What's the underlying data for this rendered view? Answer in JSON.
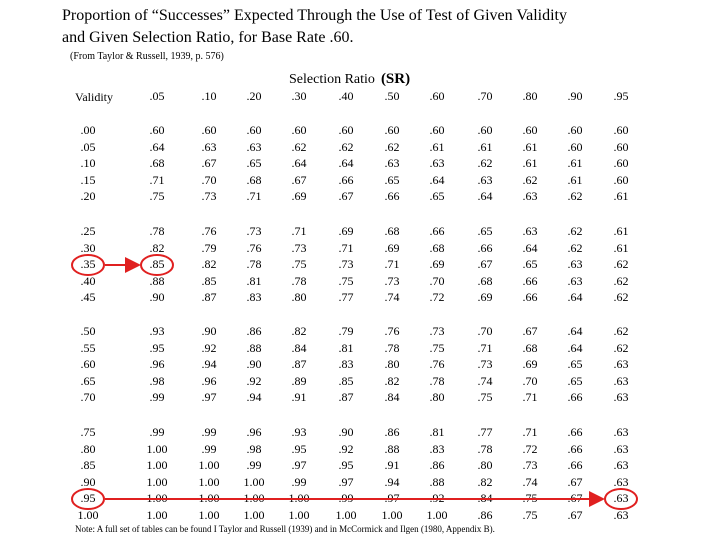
{
  "title_line1": "Proportion of “Successes” Expected Through the Use of Test of Given Validity",
  "title_line2": "and Given Selection Ratio, for Base Rate .60.",
  "source": "(From Taylor & Russell, 1939, p. 576)",
  "selection_ratio_label": "Selection Ratio",
  "selection_ratio_abbr": "(SR)",
  "validity_label": "Validity",
  "note": "Note: A full set of tables can be found I Taylor and Russell (1939) and in McCormick and Ilgen (1980, Appendix B).",
  "colors": {
    "annotation": "#e02020"
  },
  "columns": [
    ".05",
    ".10",
    ".20",
    ".30",
    ".40",
    ".50",
    ".60",
    ".70",
    ".80",
    ".90",
    ".95"
  ],
  "row_groups": [
    {
      "validity": [
        ".00",
        ".05",
        ".10",
        ".15",
        ".20"
      ],
      "rows": [
        [
          ".60",
          ".60",
          ".60",
          ".60",
          ".60",
          ".60",
          ".60",
          ".60",
          ".60",
          ".60",
          ".60"
        ],
        [
          ".64",
          ".63",
          ".63",
          ".62",
          ".62",
          ".62",
          ".61",
          ".61",
          ".61",
          ".60",
          ".60"
        ],
        [
          ".68",
          ".67",
          ".65",
          ".64",
          ".64",
          ".63",
          ".63",
          ".62",
          ".61",
          ".61",
          ".60"
        ],
        [
          ".71",
          ".70",
          ".68",
          ".67",
          ".66",
          ".65",
          ".64",
          ".63",
          ".62",
          ".61",
          ".60"
        ],
        [
          ".75",
          ".73",
          ".71",
          ".69",
          ".67",
          ".66",
          ".65",
          ".64",
          ".63",
          ".62",
          ".61"
        ]
      ]
    },
    {
      "validity": [
        ".25",
        ".30",
        ".35",
        ".40",
        ".45"
      ],
      "rows": [
        [
          ".78",
          ".76",
          ".73",
          ".71",
          ".69",
          ".68",
          ".66",
          ".65",
          ".63",
          ".62",
          ".61"
        ],
        [
          ".82",
          ".79",
          ".76",
          ".73",
          ".71",
          ".69",
          ".68",
          ".66",
          ".64",
          ".62",
          ".61"
        ],
        [
          ".85",
          ".82",
          ".78",
          ".75",
          ".73",
          ".71",
          ".69",
          ".67",
          ".65",
          ".63",
          ".62"
        ],
        [
          ".88",
          ".85",
          ".81",
          ".78",
          ".75",
          ".73",
          ".70",
          ".68",
          ".66",
          ".63",
          ".62"
        ],
        [
          ".90",
          ".87",
          ".83",
          ".80",
          ".77",
          ".74",
          ".72",
          ".69",
          ".66",
          ".64",
          ".62"
        ]
      ]
    },
    {
      "validity": [
        ".50",
        ".55",
        ".60",
        ".65",
        ".70"
      ],
      "rows": [
        [
          ".93",
          ".90",
          ".86",
          ".82",
          ".79",
          ".76",
          ".73",
          ".70",
          ".67",
          ".64",
          ".62"
        ],
        [
          ".95",
          ".92",
          ".88",
          ".84",
          ".81",
          ".78",
          ".75",
          ".71",
          ".68",
          ".64",
          ".62"
        ],
        [
          ".96",
          ".94",
          ".90",
          ".87",
          ".83",
          ".80",
          ".76",
          ".73",
          ".69",
          ".65",
          ".63"
        ],
        [
          ".98",
          ".96",
          ".92",
          ".89",
          ".85",
          ".82",
          ".78",
          ".74",
          ".70",
          ".65",
          ".63"
        ],
        [
          ".99",
          ".97",
          ".94",
          ".91",
          ".87",
          ".84",
          ".80",
          ".75",
          ".71",
          ".66",
          ".63"
        ]
      ]
    },
    {
      "validity": [
        ".75",
        ".80",
        ".85",
        ".90",
        ".95",
        "1.00"
      ],
      "rows": [
        [
          ".99",
          ".99",
          ".96",
          ".93",
          ".90",
          ".86",
          ".81",
          ".77",
          ".71",
          ".66",
          ".63"
        ],
        [
          "1.00",
          ".99",
          ".98",
          ".95",
          ".92",
          ".88",
          ".83",
          ".78",
          ".72",
          ".66",
          ".63"
        ],
        [
          "1.00",
          "1.00",
          ".99",
          ".97",
          ".95",
          ".91",
          ".86",
          ".80",
          ".73",
          ".66",
          ".63"
        ],
        [
          "1.00",
          "1.00",
          "1.00",
          ".99",
          ".97",
          ".94",
          ".88",
          ".82",
          ".74",
          ".67",
          ".63"
        ],
        [
          "1.00",
          "1.00",
          "1.00",
          "1.00",
          ".99",
          ".97",
          ".92",
          ".84",
          ".75",
          ".67",
          ".63"
        ],
        [
          "1.00",
          "1.00",
          "1.00",
          "1.00",
          "1.00",
          "1.00",
          "1.00",
          ".86",
          ".75",
          ".67",
          ".63"
        ]
      ]
    }
  ],
  "annotations": [
    {
      "name": "validity-35-to-sr05",
      "from_row": [
        1,
        2
      ],
      "to_cell": [
        1,
        2,
        0
      ]
    },
    {
      "name": "validity-95-to-sr95",
      "from_row": [
        3,
        4
      ],
      "to_cell": [
        3,
        4,
        10
      ]
    }
  ]
}
